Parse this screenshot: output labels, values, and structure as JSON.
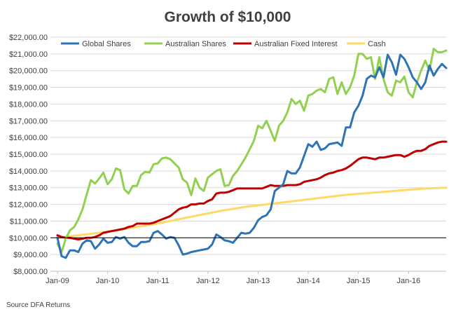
{
  "chart_data": {
    "type": "line",
    "title": "Growth of $10,000",
    "source": "Source DFA Returns",
    "ylim": [
      8000,
      22000
    ],
    "y_ticks": [
      {
        "value": 8000,
        "label": "$8,000.00"
      },
      {
        "value": 9000,
        "label": "$9,000.00"
      },
      {
        "value": 10000,
        "label": "$10,000.00"
      },
      {
        "value": 11000,
        "label": "$11,000.00"
      },
      {
        "value": 12000,
        "label": "$12,000.00"
      },
      {
        "value": 13000,
        "label": "$13,000.00"
      },
      {
        "value": 14000,
        "label": "$14,000.00"
      },
      {
        "value": 15000,
        "label": "$15,000.00"
      },
      {
        "value": 16000,
        "label": "$16,000.00"
      },
      {
        "value": 17000,
        "label": "$17,000.00"
      },
      {
        "value": 18000,
        "label": "$18,000.00"
      },
      {
        "value": 19000,
        "label": "$19,000.00"
      },
      {
        "value": 20000,
        "label": "$20,000.00"
      },
      {
        "value": 21000,
        "label": "$21,000.00"
      },
      {
        "value": 22000,
        "label": "$22,000.00"
      }
    ],
    "x_ticks": [
      "Jan-09",
      "Jan-10",
      "Jan-11",
      "Jan-12",
      "Jan-13",
      "Jan-14",
      "Jan-15",
      "Jan-16"
    ],
    "x_start": "Jan-09",
    "x_end": "Sep-16",
    "grid": "horizontal",
    "legend_position": "top",
    "reference_line": 10000,
    "series": [
      {
        "name": "Global Shares",
        "color": "#2e74b5",
        "values": [
          10000,
          8900,
          8800,
          9250,
          9250,
          9150,
          9650,
          9850,
          9800,
          9350,
          9600,
          9950,
          9700,
          9750,
          10050,
          9950,
          10050,
          9700,
          9500,
          9500,
          9750,
          9750,
          9800,
          10300,
          10400,
          10200,
          9950,
          10050,
          10000,
          9550,
          9000,
          9050,
          9150,
          9200,
          9250,
          9300,
          9350,
          9600,
          10200,
          10050,
          9850,
          9800,
          9700,
          10000,
          10300,
          10250,
          10300,
          10600,
          11050,
          11250,
          11350,
          11700,
          12800,
          13000,
          13200,
          14000,
          13850,
          13850,
          14200,
          14900,
          15600,
          15450,
          15750,
          15250,
          15350,
          15600,
          15650,
          15700,
          15500,
          16600,
          16600,
          17500,
          17900,
          18500,
          19500,
          19700,
          19600,
          20200,
          19600,
          20950,
          20500,
          19750,
          20950,
          20700,
          20200,
          19600,
          19300,
          18900,
          19300,
          20300,
          19700,
          20100,
          20400,
          20150
        ]
      },
      {
        "name": "Australian Shares",
        "color": "#92d050",
        "values": [
          9650,
          9150,
          9950,
          10450,
          10650,
          11100,
          11700,
          12600,
          13450,
          13250,
          13550,
          13900,
          13200,
          13500,
          14150,
          14050,
          12900,
          12650,
          13100,
          13100,
          13750,
          13950,
          13900,
          14400,
          14450,
          14750,
          14800,
          14700,
          14450,
          14200,
          13500,
          13300,
          12550,
          13550,
          13000,
          12800,
          13600,
          13800,
          14000,
          14100,
          13100,
          13150,
          13700,
          14000,
          14400,
          14800,
          15300,
          15800,
          16700,
          16550,
          17000,
          16400,
          15800,
          16700,
          17000,
          17500,
          18300,
          18000,
          18200,
          17600,
          18500,
          18600,
          18800,
          18900,
          18700,
          19500,
          19600,
          18600,
          19300,
          18600,
          19000,
          19700,
          21000,
          21000,
          20700,
          20800,
          19500,
          20800,
          19500,
          18700,
          18500,
          19400,
          19300,
          19650,
          18700,
          18400,
          19300,
          20000,
          20600,
          20000,
          21300,
          21100,
          21100,
          21200
        ]
      },
      {
        "name": "Australian Fixed Interest",
        "color": "#c00000",
        "values": [
          10150,
          10050,
          10000,
          10000,
          9950,
          9900,
          9950,
          10000,
          10000,
          10050,
          10150,
          10300,
          10350,
          10400,
          10450,
          10500,
          10550,
          10650,
          10700,
          10850,
          10850,
          10850,
          10850,
          10900,
          11000,
          11100,
          11200,
          11300,
          11500,
          11700,
          11800,
          11850,
          12000,
          12000,
          12050,
          12050,
          12200,
          12300,
          12650,
          12700,
          12700,
          12750,
          12850,
          12950,
          12950,
          12950,
          12950,
          12950,
          12950,
          12950,
          13050,
          13150,
          13100,
          13100,
          13100,
          13150,
          13150,
          13150,
          13200,
          13350,
          13400,
          13450,
          13500,
          13600,
          13750,
          13850,
          13900,
          14000,
          14050,
          14150,
          14300,
          14500,
          14700,
          14800,
          14800,
          14750,
          14700,
          14800,
          14800,
          14850,
          14900,
          14950,
          14950,
          14850,
          14950,
          15100,
          15200,
          15200,
          15300,
          15500,
          15600,
          15700,
          15750,
          15750
        ]
      },
      {
        "name": "Cash",
        "color": "#ffd966",
        "values": [
          10000,
          10030,
          10060,
          10090,
          10120,
          10150,
          10180,
          10210,
          10240,
          10270,
          10300,
          10330,
          10370,
          10410,
          10450,
          10490,
          10530,
          10570,
          10610,
          10650,
          10690,
          10730,
          10770,
          10810,
          10860,
          10910,
          10960,
          11010,
          11060,
          11110,
          11160,
          11210,
          11260,
          11310,
          11360,
          11410,
          11460,
          11510,
          11560,
          11610,
          11650,
          11690,
          11730,
          11770,
          11810,
          11850,
          11880,
          11910,
          11940,
          11970,
          12000,
          12030,
          12060,
          12090,
          12120,
          12150,
          12180,
          12210,
          12240,
          12270,
          12300,
          12330,
          12360,
          12390,
          12420,
          12450,
          12480,
          12510,
          12540,
          12570,
          12590,
          12610,
          12630,
          12650,
          12670,
          12690,
          12710,
          12730,
          12750,
          12770,
          12790,
          12810,
          12830,
          12850,
          12870,
          12890,
          12910,
          12930,
          12950,
          12960,
          12970,
          12980,
          12990,
          13000
        ]
      }
    ]
  }
}
